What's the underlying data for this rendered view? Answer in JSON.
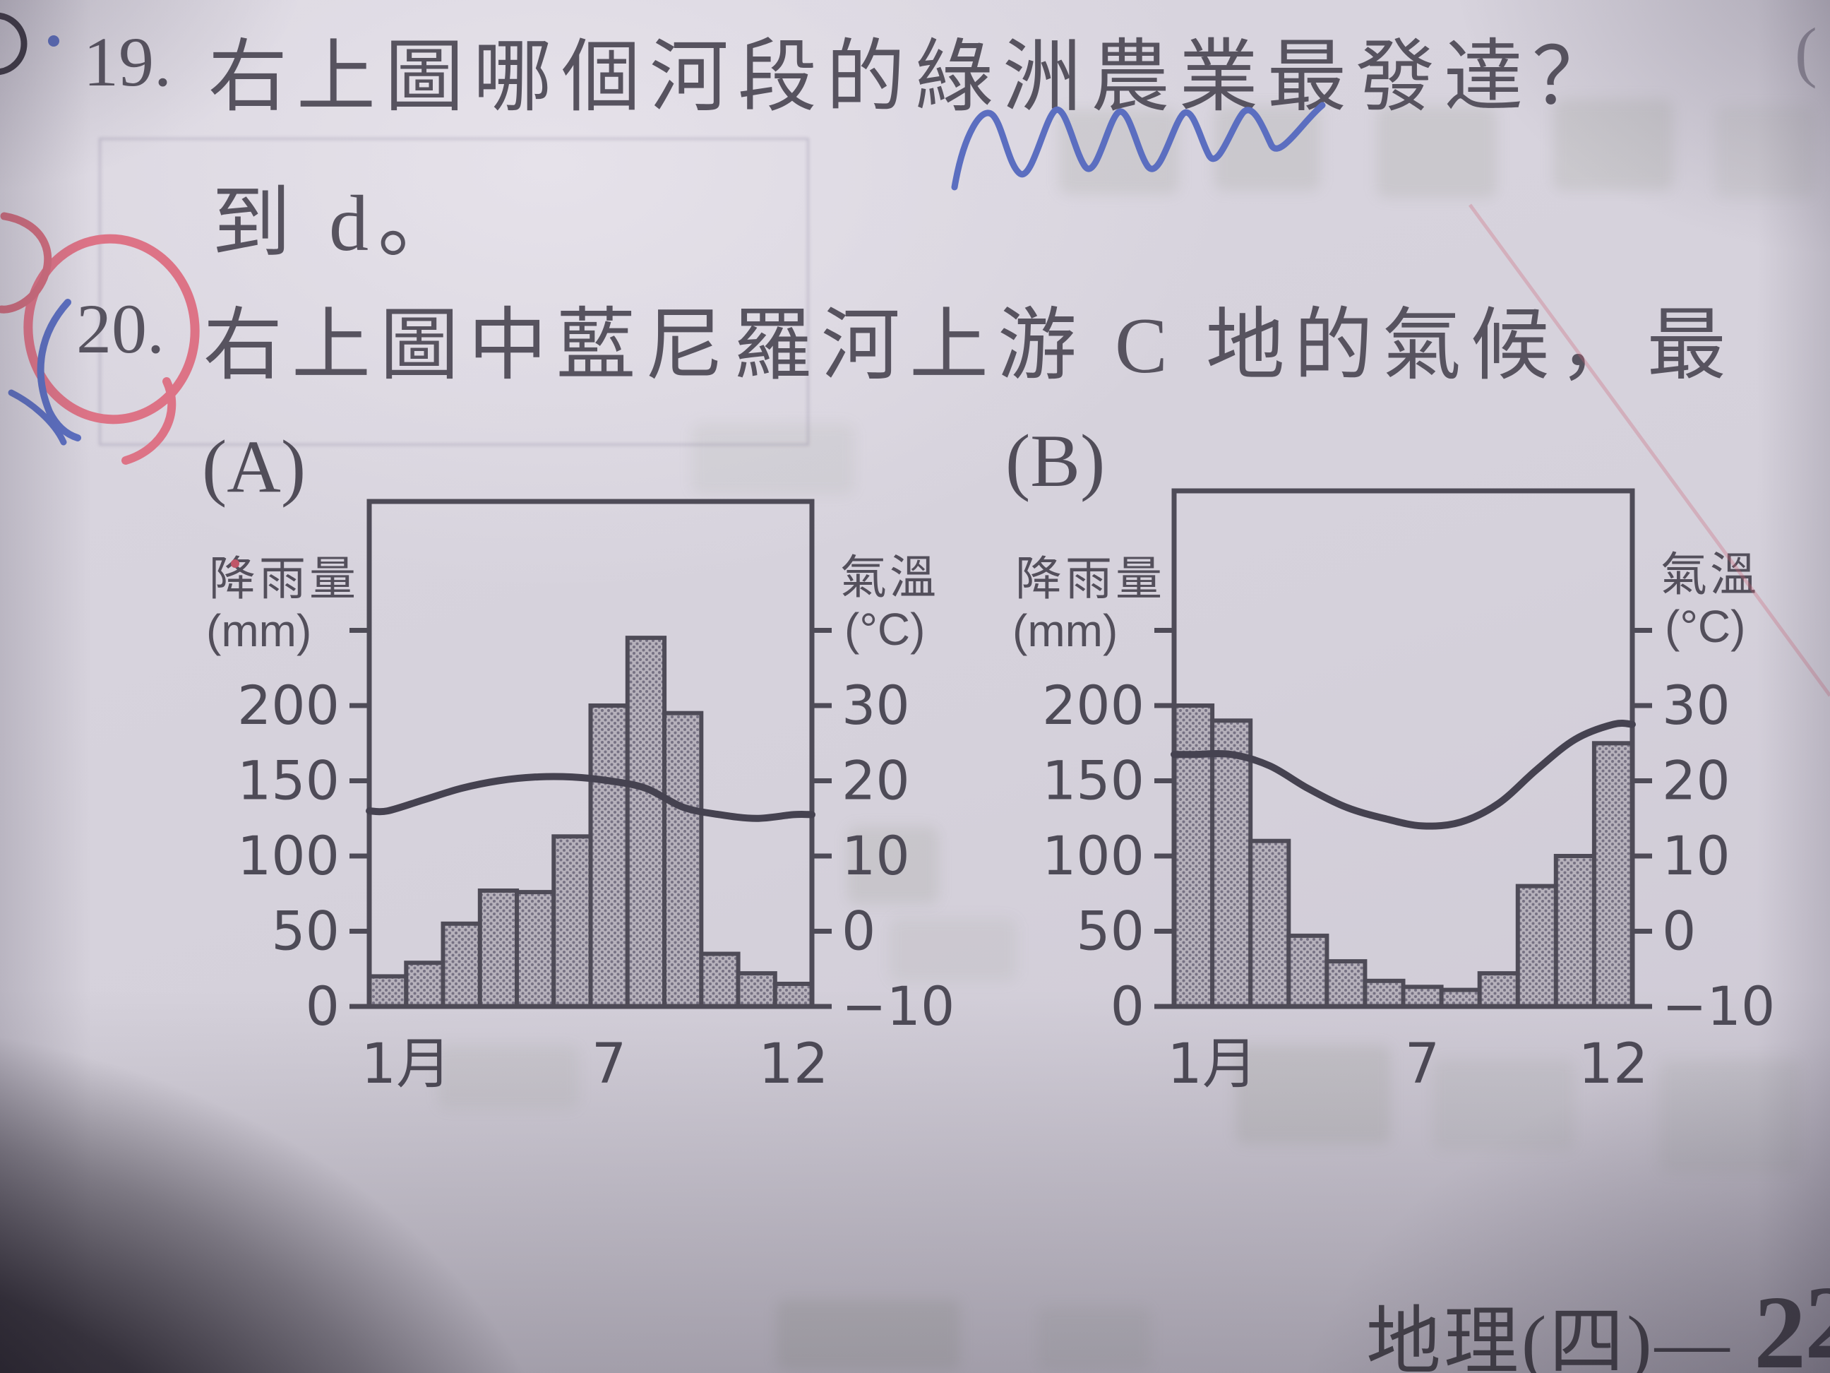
{
  "page": {
    "questions": [
      {
        "number": "19.",
        "text": "右上圖哪個河段的綠洲農業最發達？",
        "continuation": "到 d。"
      },
      {
        "number": "20.",
        "text": "右上圖中藍尼羅河上游 C 地的氣候，最"
      }
    ],
    "footer": {
      "label": "地理(四)— ",
      "page_number": "2",
      "partial_next_digit": "2"
    },
    "edge_mark_top_right": "("
  },
  "annotations": {
    "pen_colors": {
      "red": "#db7183",
      "blue": "#5b6ec0",
      "ink": "#4e4b57"
    },
    "marks": [
      "blue-wavy-underline-under-question-19",
      "red-circle-around-question-20-number",
      "red-left-margin-mark",
      "blue-left-margin-mark",
      "blue-dot-before-19",
      "red-dot-left-of-chart-a",
      "faint-red-diagonal-line-top-right",
      "partial-dark-circle-top-left-edge"
    ]
  },
  "chart_data": [
    {
      "id": "A",
      "label": "(A)",
      "type": "bar+line climograph",
      "months": [
        1,
        2,
        3,
        4,
        5,
        6,
        7,
        8,
        9,
        10,
        11,
        12
      ],
      "precipitation_mm": [
        20,
        29,
        55,
        77,
        76,
        113,
        200,
        245,
        195,
        35,
        22,
        15
      ],
      "temperature_c": [
        16,
        17.5,
        19,
        20,
        20.5,
        20.5,
        20,
        19,
        16.5,
        15.5,
        15,
        15.5
      ],
      "left_axis": {
        "title": "降雨量",
        "unit": "(mm)",
        "tick_values": [
          250,
          200,
          150,
          100,
          50,
          0
        ],
        "tick_labels": [
          "",
          "200",
          "150",
          "100",
          "50",
          "0"
        ]
      },
      "right_axis": {
        "title": "氣溫",
        "unit": "(°C)",
        "tick_values": [
          40,
          30,
          20,
          10,
          0,
          -10
        ],
        "tick_labels": [
          "",
          "30",
          "20",
          "10",
          "0",
          "−10"
        ]
      },
      "x_tick_labels": [
        {
          "month": 1,
          "label": "1月"
        },
        {
          "month": 7,
          "label": "7"
        },
        {
          "month": 12,
          "label": "12"
        }
      ]
    },
    {
      "id": "B",
      "label": "(B)",
      "type": "bar+line climograph",
      "months": [
        1,
        2,
        3,
        4,
        5,
        6,
        7,
        8,
        9,
        10,
        11,
        12
      ],
      "precipitation_mm": [
        200,
        190,
        110,
        47,
        30,
        17,
        13,
        11,
        22,
        80,
        100,
        175
      ],
      "temperature_c": [
        23.5,
        23.5,
        22,
        19,
        16.5,
        15,
        14,
        14.5,
        17,
        21.5,
        25.5,
        27.5
      ],
      "left_axis": {
        "title": "降雨量",
        "unit": "(mm)",
        "tick_values": [
          250,
          200,
          150,
          100,
          50,
          0
        ],
        "tick_labels": [
          "",
          "200",
          "150",
          "100",
          "50",
          "0"
        ]
      },
      "right_axis": {
        "title": "氣溫",
        "unit": "(°C)",
        "tick_values": [
          40,
          30,
          20,
          10,
          0,
          -10
        ],
        "tick_labels": [
          "",
          "30",
          "20",
          "10",
          "0",
          "−10"
        ]
      },
      "x_tick_labels": [
        {
          "month": 1,
          "label": "1月"
        },
        {
          "month": 7,
          "label": "7"
        },
        {
          "month": 12,
          "label": "12"
        }
      ]
    }
  ]
}
